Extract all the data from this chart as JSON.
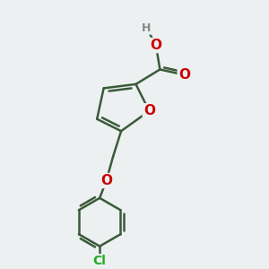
{
  "bg_color": "#edf0f0",
  "bond_color": "#3a5a3a",
  "bond_width": 1.8,
  "atom_colors": {
    "O": "#cc0000",
    "Cl": "#22aa22",
    "H": "#888888",
    "C": "#3a5a3a"
  },
  "font_size_atom": 11,
  "font_size_H": 9,
  "font_size_Cl": 10
}
